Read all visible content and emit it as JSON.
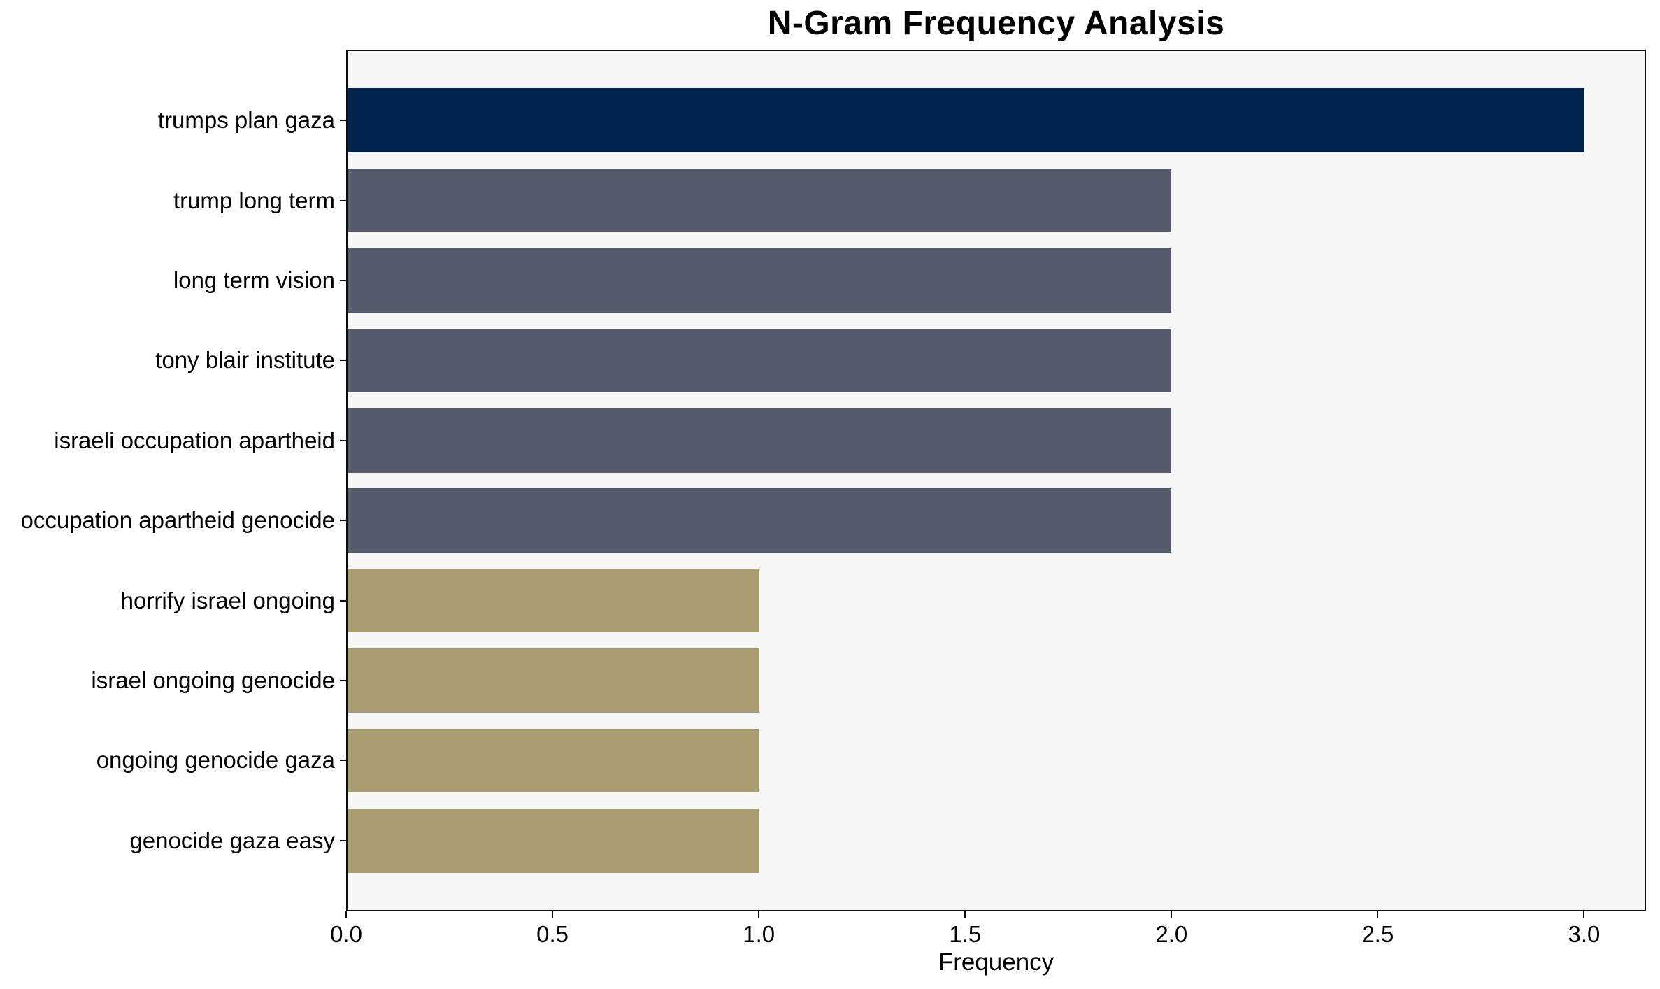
{
  "chart_data": {
    "type": "bar",
    "orientation": "horizontal",
    "title": "N-Gram Frequency Analysis",
    "xlabel": "Frequency",
    "ylabel": "",
    "xlim": [
      0,
      3.15
    ],
    "xticks": [
      0.0,
      0.5,
      1.0,
      1.5,
      2.0,
      2.5,
      3.0
    ],
    "xtick_labels": [
      "0.0",
      "0.5",
      "1.0",
      "1.5",
      "2.0",
      "2.5",
      "3.0"
    ],
    "grid": false,
    "legend": false,
    "categories": [
      "trumps plan gaza",
      "trump long term",
      "long term vision",
      "tony blair institute",
      "israeli occupation apartheid",
      "occupation apartheid genocide",
      "horrify israel ongoing",
      "israel ongoing genocide",
      "ongoing genocide gaza",
      "genocide gaza easy"
    ],
    "values": [
      3,
      2,
      2,
      2,
      2,
      2,
      1,
      1,
      1,
      1
    ],
    "bars": [
      {
        "label": "trumps plan gaza",
        "value": 3,
        "color": "#02234E"
      },
      {
        "label": "trump long term",
        "value": 2,
        "color": "#565B6B"
      },
      {
        "label": "long term vision",
        "value": 2,
        "color": "#565B6B"
      },
      {
        "label": "tony blair institute",
        "value": 2,
        "color": "#565B6B"
      },
      {
        "label": "israeli occupation apartheid",
        "value": 2,
        "color": "#565B6B"
      },
      {
        "label": "occupation apartheid genocide",
        "value": 2,
        "color": "#565B6B"
      },
      {
        "label": "horrify israel ongoing",
        "value": 1,
        "color": "#A89C73"
      },
      {
        "label": "israel ongoing genocide",
        "value": 1,
        "color": "#A89C73"
      },
      {
        "label": "ongoing genocide gaza",
        "value": 1,
        "color": "#A89C73"
      },
      {
        "label": "genocide gaza easy",
        "value": 1,
        "color": "#A89C73"
      }
    ],
    "colors": {
      "bar_high": "#02234E",
      "bar_mid": "#565B6B",
      "bar_low": "#A89C73",
      "plot_background": "#F7F7F8",
      "page_background": "#FFFFFF",
      "spine": "#0F0F0F",
      "text": "#000000"
    }
  }
}
